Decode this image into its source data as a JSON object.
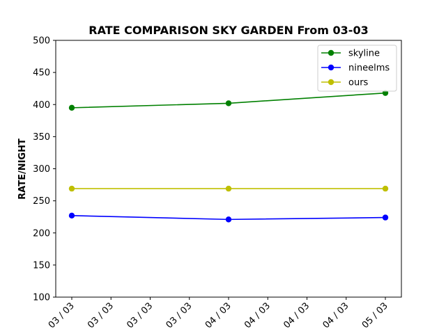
{
  "chart_data": {
    "type": "line",
    "title": "RATE COMPARISON SKY GARDEN From 03-03",
    "xlabel": "",
    "ylabel": "RATE/NIGHT",
    "categories": [
      "03 / 03",
      "03 / 03",
      "03 / 03",
      "03 / 03",
      "04 / 03",
      "04 / 03",
      "04 / 03",
      "04 / 03",
      "05 / 03"
    ],
    "ylim": [
      100,
      500
    ],
    "yticks": [
      100,
      150,
      200,
      250,
      300,
      350,
      400,
      450,
      500
    ],
    "grid": false,
    "legend_position": "top-right",
    "series": [
      {
        "name": "skyline",
        "color": "#008000",
        "points": [
          [
            0,
            395
          ],
          [
            4,
            402
          ],
          [
            8,
            418
          ]
        ]
      },
      {
        "name": "nineelms",
        "color": "#0000ff",
        "points": [
          [
            0,
            227
          ],
          [
            4,
            221
          ],
          [
            8,
            224
          ]
        ]
      },
      {
        "name": "ours",
        "color": "#bfbf00",
        "points": [
          [
            0,
            269
          ],
          [
            4,
            269
          ],
          [
            8,
            269
          ]
        ]
      }
    ]
  }
}
